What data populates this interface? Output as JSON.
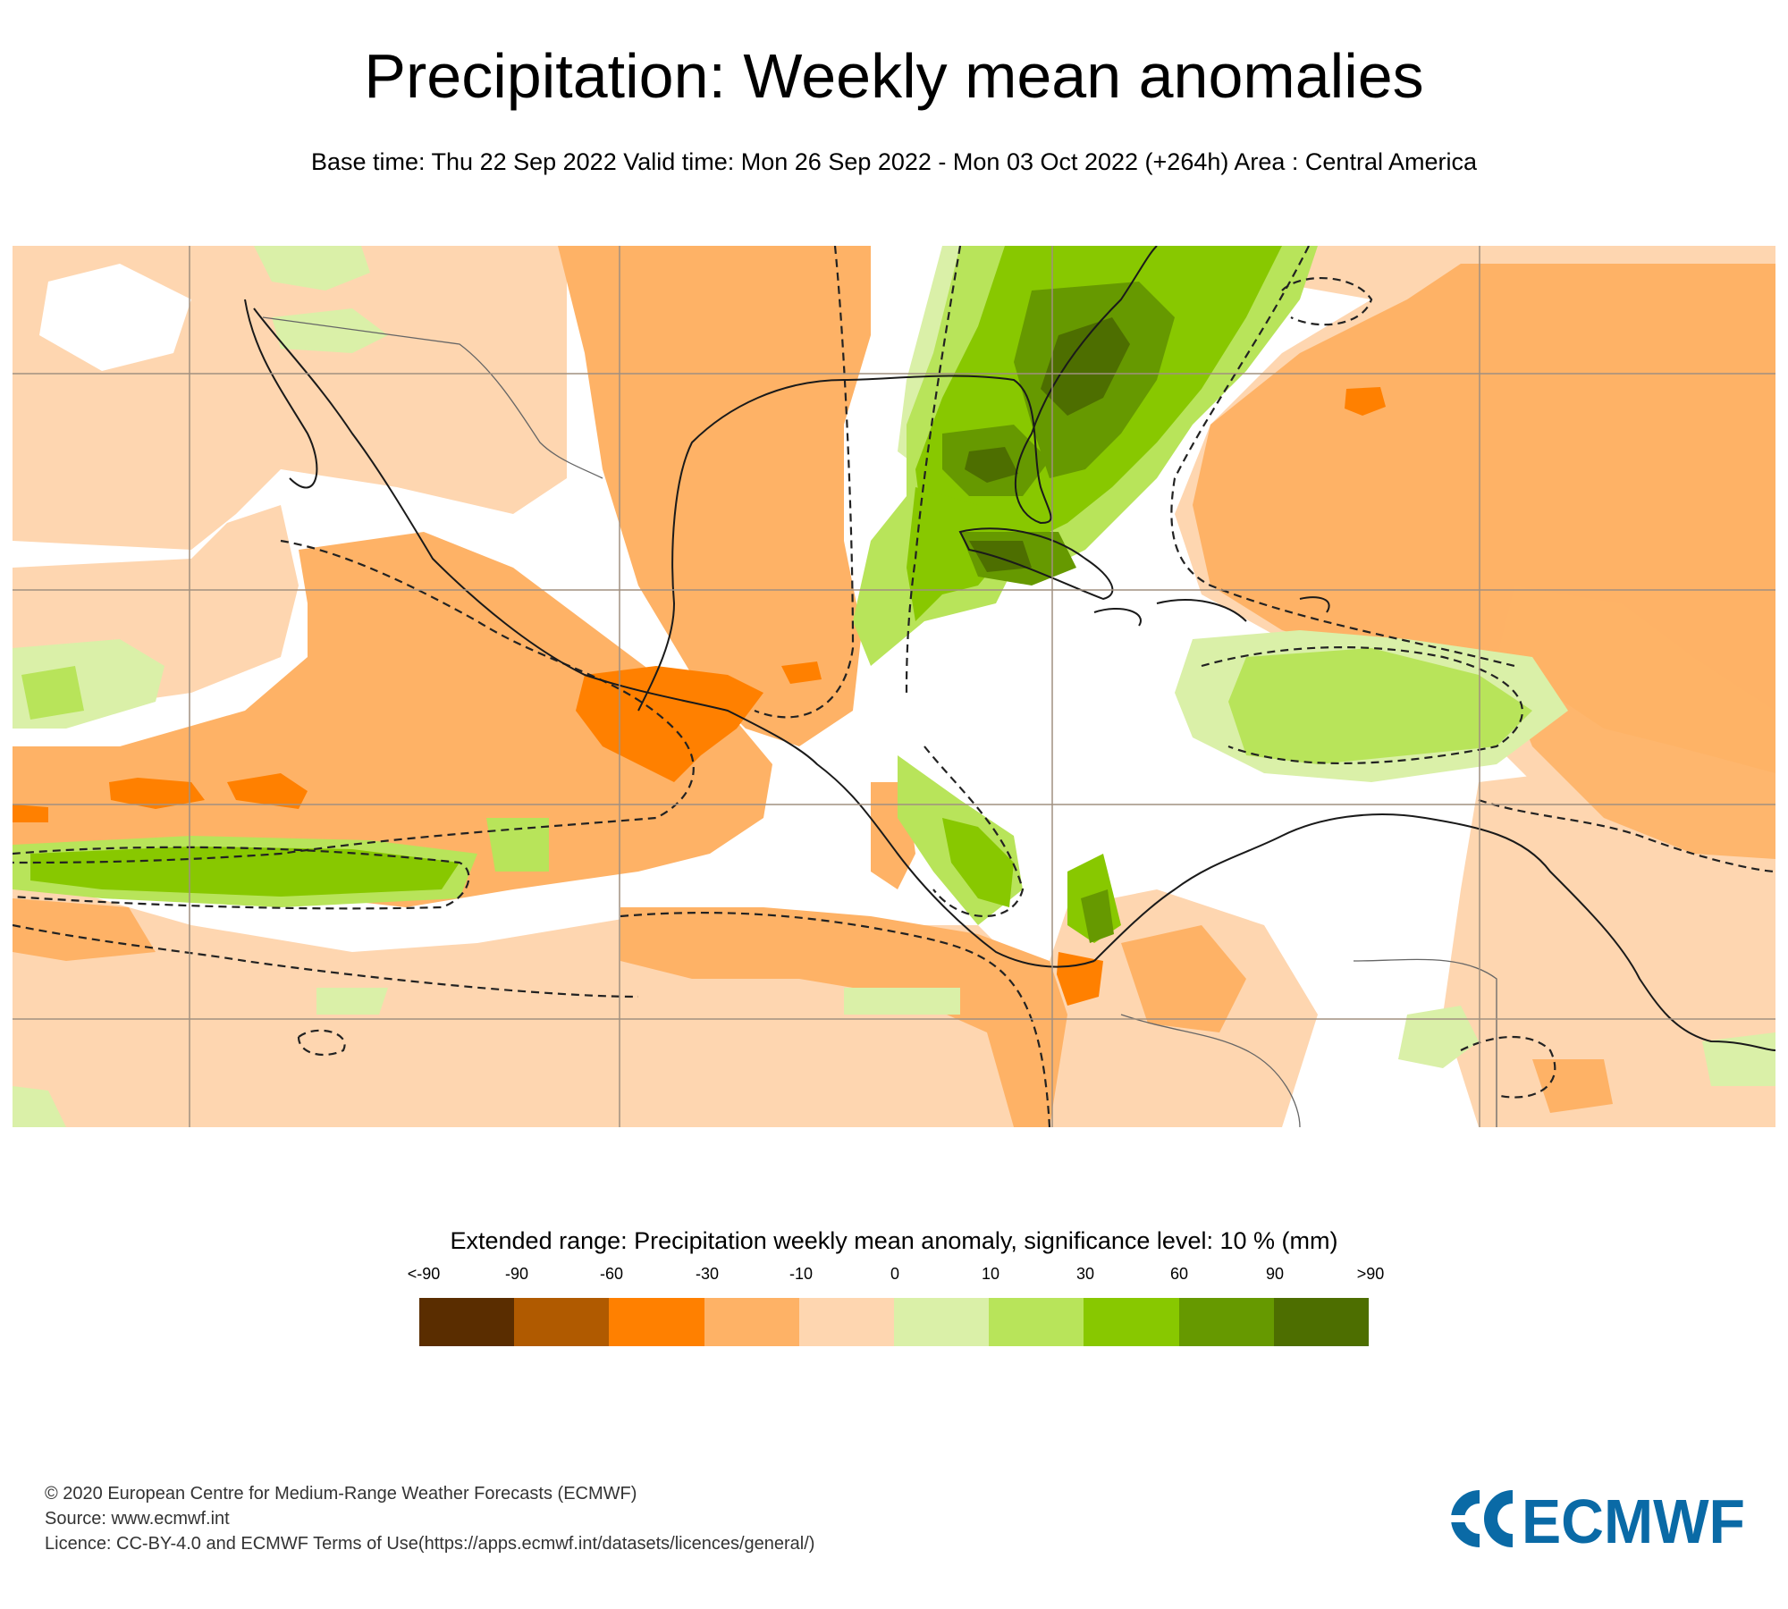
{
  "header": {
    "title": "Precipitation: Weekly mean anomalies",
    "subtitle": "Base time: Thu 22 Sep 2022 Valid time: Mon 26 Sep 2022 - Mon 03 Oct 2022 (+264h) Area : Central America"
  },
  "legend": {
    "title": "Extended range: Precipitation weekly mean anomaly, significance level: 10 % (mm)",
    "labels": [
      "<-90",
      "-90",
      "-60",
      "-30",
      "-10",
      "0",
      "10",
      "30",
      "60",
      "90",
      ">90"
    ],
    "colors": [
      "#5a2d00",
      "#b05a00",
      "#ff8000",
      "#feb266",
      "#fed6b0",
      "#daf0a8",
      "#b8e45a",
      "#88c800",
      "#669900",
      "#4d6e00"
    ]
  },
  "map": {
    "colors": {
      "strong_dry": "#ff8000",
      "dry": "#feb266",
      "weak_dry": "#fed6b0",
      "weak_wet": "#daf0a8",
      "wet": "#b8e45a",
      "very_wet": "#88c800",
      "strong_wet": "#669900",
      "extreme_wet": "#4d6e00",
      "gridline": "#a09080",
      "coastline": "#1a1a1a",
      "border": "#666666"
    }
  },
  "footer": {
    "copyright": "© 2020 European Centre for Medium-Range Weather Forecasts (ECMWF)",
    "source": "Source: www.ecmwf.int",
    "licence": "Licence: CC-BY-4.0 and ECMWF Terms of Use(https://apps.ecmwf.int/datasets/licences/general/)",
    "logo_text": "ECMWF",
    "logo_color": "#0a6aa6"
  }
}
